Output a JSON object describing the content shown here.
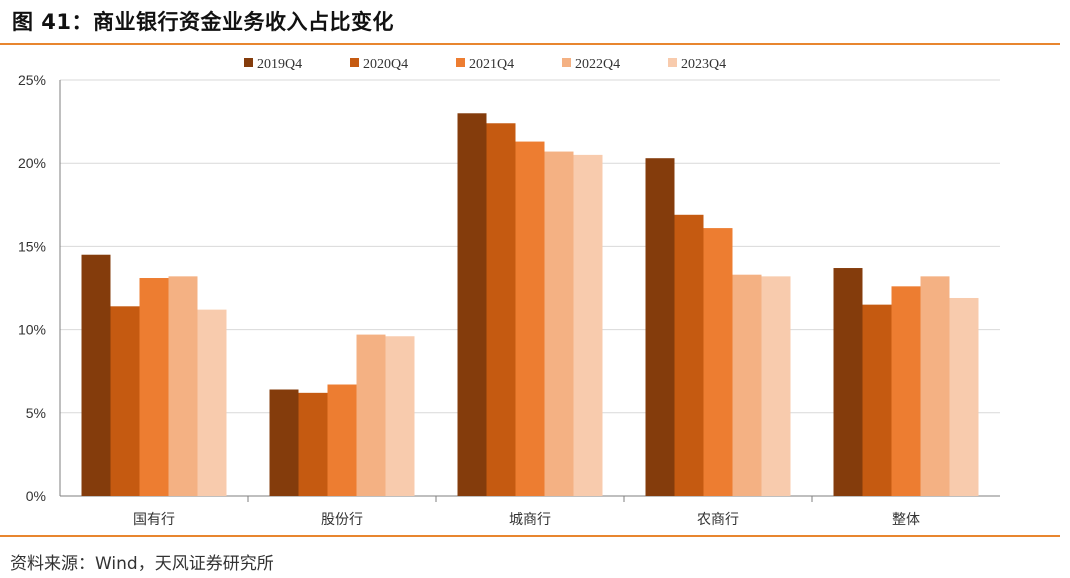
{
  "header": {
    "title": "图 41：商业银行资金业务收入占比变化"
  },
  "footer": {
    "source": "资料来源：Wind，天风证券研究所"
  },
  "colors": {
    "rule": "#e8862f",
    "series": [
      "#843c0c",
      "#c55a11",
      "#ed7d31",
      "#f4b183",
      "#f8cbad"
    ],
    "grid": "#d9d9d9",
    "axis": "#7f7f7f"
  },
  "chart_data": {
    "type": "bar",
    "title": "",
    "xlabel": "",
    "ylabel": "",
    "categories": [
      "国有行",
      "股份行",
      "城商行",
      "农商行",
      "整体"
    ],
    "yticks": [
      "0%",
      "5%",
      "10%",
      "15%",
      "20%",
      "25%"
    ],
    "ylim": [
      0,
      25
    ],
    "grid": true,
    "legend_position": "top-center",
    "series": [
      {
        "name": "2019Q4",
        "values": [
          14.5,
          6.4,
          23.0,
          20.3,
          13.7
        ]
      },
      {
        "name": "2020Q4",
        "values": [
          11.4,
          6.2,
          22.4,
          16.9,
          11.5
        ]
      },
      {
        "name": "2021Q4",
        "values": [
          13.1,
          6.7,
          21.3,
          16.1,
          12.6
        ]
      },
      {
        "name": "2022Q4",
        "values": [
          13.2,
          9.7,
          20.7,
          13.3,
          13.2
        ]
      },
      {
        "name": "2023Q4",
        "values": [
          11.2,
          9.6,
          20.5,
          13.2,
          11.9
        ]
      }
    ]
  }
}
